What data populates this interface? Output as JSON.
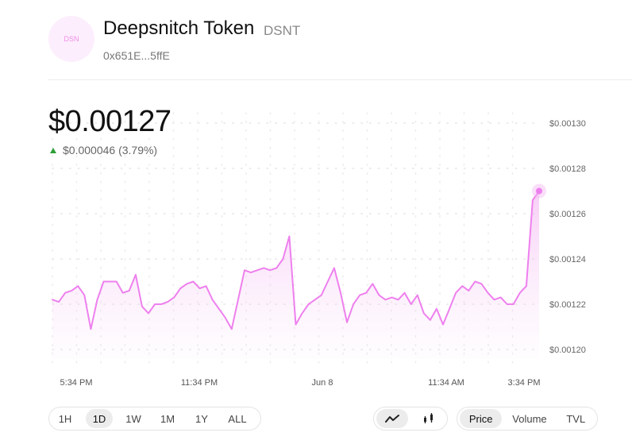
{
  "token": {
    "avatar_text": "DSN",
    "name": "Deepsnitch Token",
    "symbol": "DSNT",
    "address": "0x651E...5ffE"
  },
  "price": {
    "current": "$0.00127",
    "change": "$0.000046 (3.79%)",
    "direction": "up"
  },
  "colors": {
    "line": "#ee80ee",
    "up": "#2e9e38"
  },
  "chart_data": {
    "type": "area",
    "xlabel": "",
    "ylabel": "",
    "x_tick_labels": [
      "5:34 PM",
      "11:34 PM",
      "Jun 8",
      "11:34 AM",
      "3:34 PM"
    ],
    "y_tick_labels": [
      "$0.00130",
      "$0.00128",
      "$0.00126",
      "$0.00124",
      "$0.00122",
      "$0.00120"
    ],
    "ylim": [
      0.0012,
      0.0013
    ],
    "grid": true,
    "series": [
      {
        "values": [
          0.001222,
          0.001221,
          0.001225,
          0.001226,
          0.001228,
          0.001224,
          0.001209,
          0.001222,
          0.00123,
          0.00123,
          0.00123,
          0.001225,
          0.001226,
          0.001233,
          0.001219,
          0.001216,
          0.00122,
          0.00122,
          0.001221,
          0.001223,
          0.001227,
          0.001229,
          0.00123,
          0.001227,
          0.001228,
          0.001222,
          0.001218,
          0.001214,
          0.001209,
          0.001222,
          0.001235,
          0.001234,
          0.001235,
          0.001236,
          0.001235,
          0.001236,
          0.00124,
          0.00125,
          0.001211,
          0.001216,
          0.00122,
          0.001222,
          0.001224,
          0.00123,
          0.001236,
          0.001225,
          0.001212,
          0.00122,
          0.001224,
          0.001225,
          0.001229,
          0.001224,
          0.001222,
          0.001223,
          0.001222,
          0.001225,
          0.00122,
          0.001224,
          0.001216,
          0.001213,
          0.001218,
          0.001211,
          0.001218,
          0.001225,
          0.001228,
          0.001226,
          0.00123,
          0.001229,
          0.001225,
          0.001222,
          0.001223,
          0.00122,
          0.00122,
          0.001225,
          0.001228,
          0.001266,
          0.00127
        ],
        "color": "#ee80ee"
      }
    ]
  },
  "timeframes": {
    "items": [
      "1H",
      "1D",
      "1W",
      "1M",
      "1Y",
      "ALL"
    ],
    "selected": "1D"
  },
  "chart_types": {
    "items": [
      {
        "name": "line-chart-icon",
        "active": true
      },
      {
        "name": "candlestick-chart-icon",
        "active": false
      }
    ]
  },
  "metrics": {
    "items": [
      "Price",
      "Volume",
      "TVL"
    ],
    "selected": "Price"
  }
}
